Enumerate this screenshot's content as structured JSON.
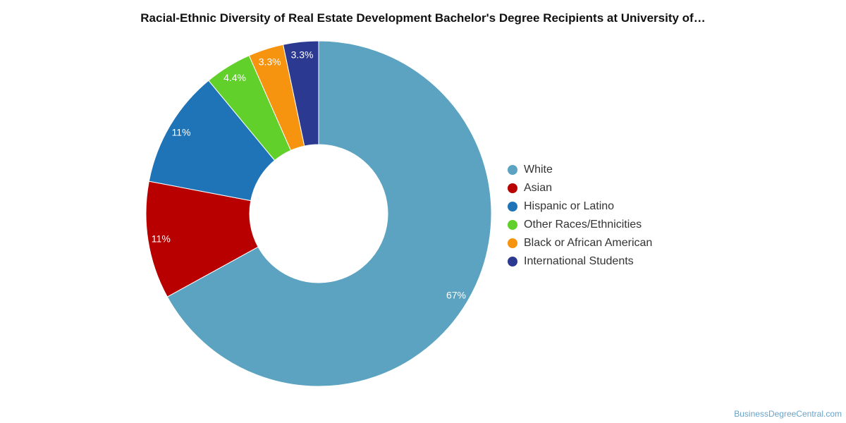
{
  "chart_data": {
    "type": "pie",
    "style": "donut",
    "title": "Racial-Ethnic Diversity of Real Estate Development Bachelor's Degree Recipients at University of…",
    "legend_position": "right",
    "slices": [
      {
        "name": "White",
        "value": 67,
        "label": "67%",
        "color": "#5ba3c0"
      },
      {
        "name": "Asian",
        "value": 11,
        "label": "11%",
        "color": "#b80000"
      },
      {
        "name": "Hispanic or Latino",
        "value": 11,
        "label": "11%",
        "color": "#1f73b7"
      },
      {
        "name": "Other Races/Ethnicities",
        "value": 4.4,
        "label": "4.4%",
        "color": "#62d02a"
      },
      {
        "name": "Black or African American",
        "value": 3.3,
        "label": "3.3%",
        "color": "#f7940f"
      },
      {
        "name": "International Students",
        "value": 3.3,
        "label": "3.3%",
        "color": "#2b3990"
      }
    ]
  },
  "watermark": "BusinessDegreeCentral.com"
}
